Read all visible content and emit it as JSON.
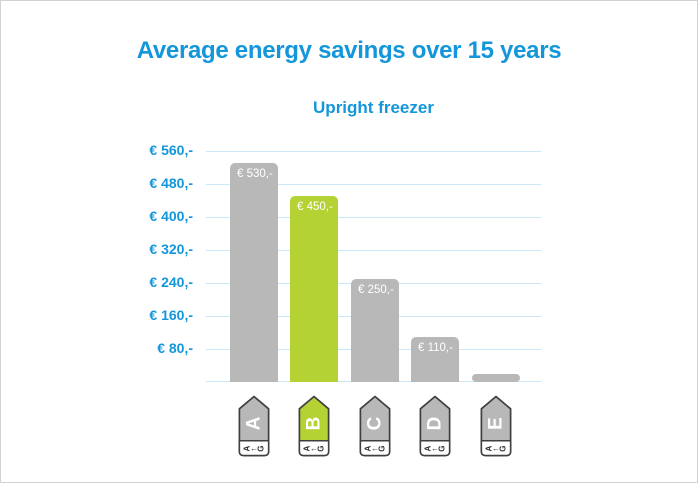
{
  "title": "Average energy savings over 15 years",
  "subtitle": "Upright freezer",
  "colors": {
    "accent_blue": "#1496db",
    "bar_gray": "#b8b8b8",
    "bar_green": "#b4d234",
    "gridline_blue": "#cbe7f8",
    "tag_outline": "#3f3f3f",
    "page_border": "#d2d2d2"
  },
  "chart_data": {
    "type": "bar",
    "title": "Average energy savings over 15 years",
    "subtitle": "Upright freezer",
    "categories": [
      "A",
      "B",
      "C",
      "D",
      "E"
    ],
    "values": [
      530,
      450,
      250,
      110,
      20
    ],
    "bar_labels": [
      "€ 530,-",
      "€ 450,-",
      "€ 250,-",
      "€ 110,-",
      ""
    ],
    "bar_colors": [
      "#b8b8b8",
      "#b4d234",
      "#b8b8b8",
      "#b8b8b8",
      "#b8b8b8"
    ],
    "highlighted_category": "B",
    "y_ticks": [
      "€ 560,-",
      "€ 480,-",
      "€ 400,-",
      "€ 320,-",
      "€ 240,-",
      "€ 160,-",
      "€ 80,-"
    ],
    "y_tick_values": [
      560,
      480,
      400,
      320,
      240,
      160,
      80
    ],
    "ylim": [
      0,
      560
    ],
    "grid": true,
    "legend": "none",
    "x_axis_marker": "energy-class-labels",
    "energy_scale_glyphs": [
      "A",
      "←",
      "G"
    ]
  }
}
